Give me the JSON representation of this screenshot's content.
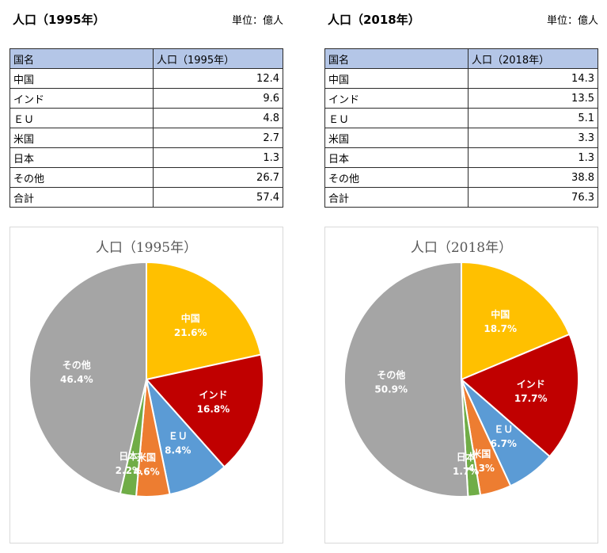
{
  "left": {
    "title": "人口（1995年）",
    "unit": "単位：億人",
    "table": {
      "headers": [
        "国名",
        "人口（1995年）"
      ],
      "rows": [
        {
          "name": "中国",
          "value": "12.4"
        },
        {
          "name": "インド",
          "value": "9.6"
        },
        {
          "name": "ＥＵ",
          "value": "4.8"
        },
        {
          "name": "米国",
          "value": "2.7"
        },
        {
          "name": "日本",
          "value": "1.3"
        },
        {
          "name": "その他",
          "value": "26.7"
        },
        {
          "name": "合計",
          "value": "57.4"
        }
      ]
    }
  },
  "right": {
    "title": "人口（2018年）",
    "unit": "単位：億人",
    "table": {
      "headers": [
        "国名",
        "人口（2018年）"
      ],
      "rows": [
        {
          "name": "中国",
          "value": "14.3"
        },
        {
          "name": "インド",
          "value": "13.5"
        },
        {
          "name": "ＥＵ",
          "value": "5.1"
        },
        {
          "name": "米国",
          "value": "3.3"
        },
        {
          "name": "日本",
          "value": "1.3"
        },
        {
          "name": "その他",
          "value": "38.8"
        },
        {
          "name": "合計",
          "value": "76.3"
        }
      ]
    }
  },
  "colors": {
    "中国": "#ffc000",
    "インド": "#c00000",
    "ＥＵ": "#5b9bd5",
    "米国": "#ed7d31",
    "日本": "#70ad47",
    "その他": "#a5a5a5"
  },
  "chart_data": [
    {
      "type": "pie",
      "title": "人口（1995年）",
      "categories": [
        "中国",
        "インド",
        "ＥＵ",
        "米国",
        "日本",
        "その他"
      ],
      "values": [
        21.6,
        16.8,
        8.4,
        4.6,
        2.2,
        46.4
      ],
      "data_labels": [
        "21.6%",
        "16.8%",
        "8.4%",
        "4.6%",
        "2.2%",
        "46.4%"
      ]
    },
    {
      "type": "pie",
      "title": "人口（2018年）",
      "categories": [
        "中国",
        "インド",
        "ＥＵ",
        "米国",
        "日本",
        "その他"
      ],
      "values": [
        18.7,
        17.7,
        6.7,
        4.3,
        1.7,
        50.9
      ],
      "data_labels": [
        "18.7%",
        "17.7%",
        "6.7%",
        "4.3%",
        "1.7%",
        "50.9%"
      ]
    }
  ]
}
